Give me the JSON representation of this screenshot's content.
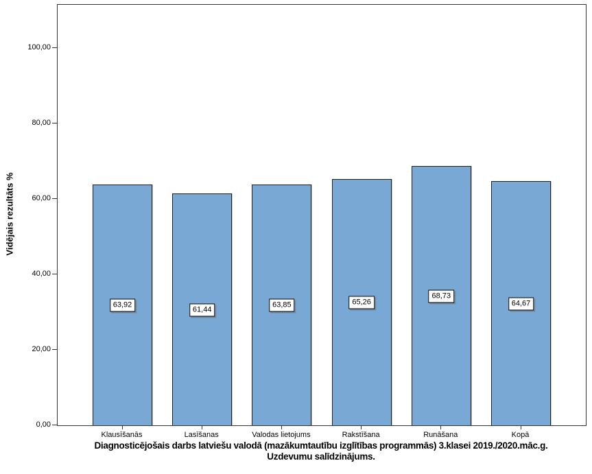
{
  "chart_data": {
    "type": "bar",
    "title_line1": "Diagnosticējošais darbs latviešu valodā (mazākumtautību izglītības programmās) 3.klasei 2019./2020.māc.g.",
    "title_line2": "Uzdevumu salīdzinājums.",
    "ylabel": "Vidējais rezultāts %",
    "xlabel": "",
    "categories": [
      "Klausīšanās",
      "Lasīšanas",
      "Valodas lietojums",
      "Rakstīšana",
      "Runāšana",
      "Kopā"
    ],
    "values": [
      63.92,
      61.44,
      63.85,
      65.26,
      68.73,
      64.67
    ],
    "value_labels": [
      "63,92",
      "61,44",
      "63,85",
      "65,26",
      "68,73",
      "64,67"
    ],
    "y_ticks": [
      {
        "value": 0,
        "label": "0,00"
      },
      {
        "value": 20,
        "label": "20,00"
      },
      {
        "value": 40,
        "label": "40,00"
      },
      {
        "value": 60,
        "label": "60,00"
      },
      {
        "value": 80,
        "label": "80,00"
      },
      {
        "value": 100,
        "label": "100,00"
      }
    ],
    "ylim": [
      0,
      111.5
    ],
    "grid": false,
    "legend_position": "none",
    "bar_color": "#7AA8D4",
    "bar_border_color": "#1f1f1f",
    "axis_color": "#333333",
    "background_color": "#ffffff"
  }
}
